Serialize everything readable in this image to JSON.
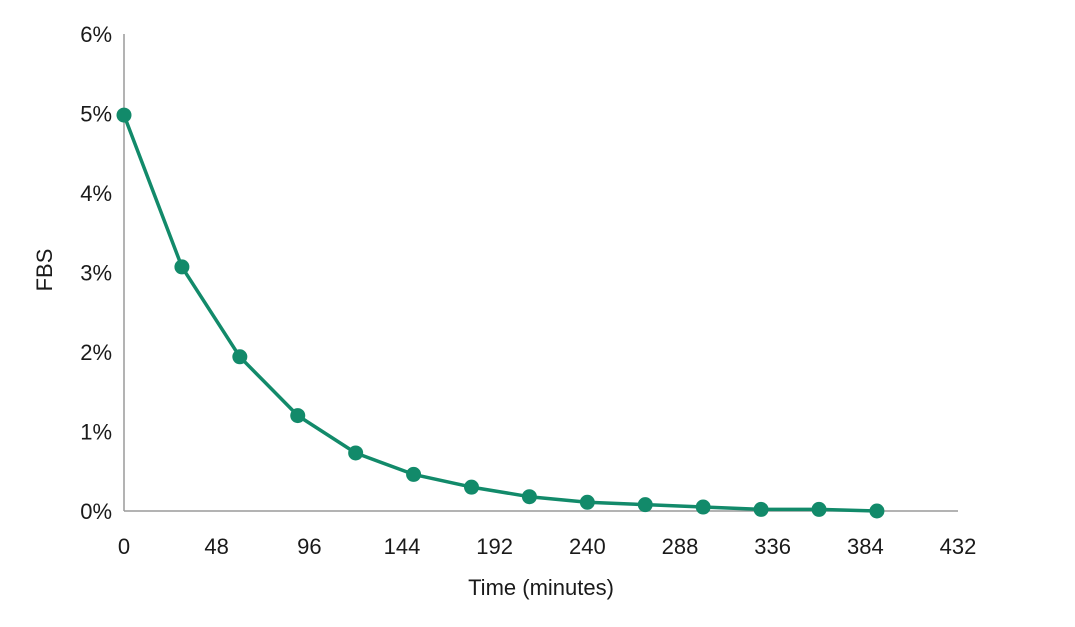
{
  "chart_data": {
    "type": "line",
    "title": "",
    "xlabel": "Time (minutes)",
    "ylabel": "FBS",
    "xlim": [
      0,
      432
    ],
    "ylim": [
      0,
      6
    ],
    "x_ticks": [
      0,
      48,
      96,
      144,
      192,
      240,
      288,
      336,
      384,
      432
    ],
    "y_ticks": [
      0,
      1,
      2,
      3,
      4,
      5,
      6
    ],
    "y_tick_labels": [
      "0%",
      "1%",
      "2%",
      "3%",
      "4%",
      "5%",
      "6%"
    ],
    "grid": false,
    "legend": false,
    "series": [
      {
        "x": [
          0,
          30,
          60,
          90,
          120,
          150,
          180,
          210,
          240,
          270,
          300,
          330,
          360,
          390
        ],
        "y": [
          4.98,
          3.07,
          1.94,
          1.2,
          0.73,
          0.46,
          0.3,
          0.18,
          0.11,
          0.08,
          0.05,
          0.02,
          0.02,
          0.0
        ],
        "color": "#128a6a"
      }
    ]
  }
}
